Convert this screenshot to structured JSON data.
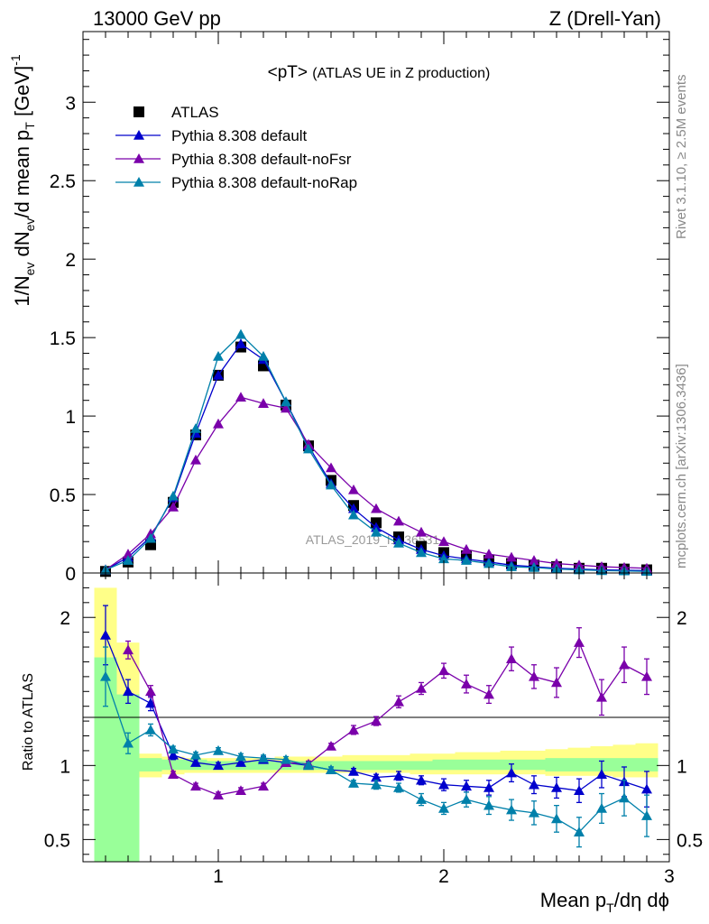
{
  "header": {
    "left": "13000 GeV pp",
    "right": "Z (Drell-Yan)"
  },
  "side_labels": {
    "rivet": "Rivet 3.1.10, ≥ 2.5M events",
    "mcplots": "mcplots.cern.ch [arXiv:1306.3436]"
  },
  "watermark": "ATLAS_2019_I1736531",
  "colors": {
    "atlas": "#000000",
    "default": "#0000cc",
    "noFsr": "#7a00aa",
    "noRap": "#0080aa",
    "band_yellow": "#ffff88",
    "band_green": "#99ff99"
  },
  "chart_data": [
    {
      "type": "scatter",
      "panel": "main",
      "title_main": "<pT>",
      "title_sub": "(ATLAS UE in Z production)",
      "ylabel": "1/N_ev dN_ev/d mean p_T [GeV]^-1",
      "xlim": [
        0.4,
        3.0
      ],
      "ylim": [
        0,
        3.45
      ],
      "yticks": [
        0,
        0.5,
        1,
        1.5,
        2,
        2.5,
        3
      ],
      "ytick_labels": [
        "0",
        "0.5",
        "1",
        "1.5",
        "2",
        "2.5",
        "3"
      ],
      "legend_position": "top-left",
      "x": [
        0.5,
        0.6,
        0.7,
        0.8,
        0.9,
        1.0,
        1.1,
        1.2,
        1.3,
        1.4,
        1.5,
        1.6,
        1.7,
        1.8,
        1.9,
        2.0,
        2.1,
        2.2,
        2.3,
        2.4,
        2.5,
        2.6,
        2.7,
        2.8,
        2.9
      ],
      "series": [
        {
          "name": "ATLAS",
          "marker": "square",
          "color_key": "atlas",
          "values": [
            0.01,
            0.07,
            0.18,
            0.45,
            0.88,
            1.26,
            1.44,
            1.32,
            1.07,
            0.81,
            0.59,
            0.43,
            0.32,
            0.23,
            0.17,
            0.13,
            0.11,
            0.08,
            0.06,
            0.05,
            0.04,
            0.03,
            0.03,
            0.025,
            0.02
          ]
        },
        {
          "name": "Pythia 8.308 default",
          "marker": "triangle",
          "color_key": "default",
          "values": [
            0.02,
            0.1,
            0.23,
            0.48,
            0.89,
            1.26,
            1.46,
            1.36,
            1.09,
            0.81,
            0.57,
            0.41,
            0.29,
            0.21,
            0.15,
            0.11,
            0.09,
            0.07,
            0.05,
            0.04,
            0.03,
            0.025,
            0.02,
            0.018,
            0.015
          ]
        },
        {
          "name": "Pythia 8.308 default-noFsr",
          "marker": "triangle",
          "color_key": "noFsr",
          "values": [
            0.02,
            0.12,
            0.25,
            0.42,
            0.72,
            0.95,
            1.12,
            1.08,
            1.05,
            0.82,
            0.67,
            0.53,
            0.41,
            0.33,
            0.26,
            0.2,
            0.15,
            0.12,
            0.1,
            0.08,
            0.06,
            0.05,
            0.04,
            0.035,
            0.03
          ]
        },
        {
          "name": "Pythia 8.308 default-noRap",
          "marker": "triangle",
          "color_key": "noRap",
          "values": [
            0.02,
            0.08,
            0.22,
            0.49,
            0.92,
            1.38,
            1.52,
            1.38,
            1.09,
            0.79,
            0.56,
            0.37,
            0.26,
            0.19,
            0.13,
            0.09,
            0.08,
            0.06,
            0.04,
            0.035,
            0.025,
            0.02,
            0.015,
            0.013,
            0.01
          ]
        }
      ]
    },
    {
      "type": "scatter",
      "panel": "ratio",
      "ylabel": "Ratio to ATLAS",
      "xlabel": "Mean p_T/dη dϕ",
      "xlim": [
        0.4,
        3.0
      ],
      "ylim": [
        0.35,
        2.3
      ],
      "yticks": [
        0.5,
        1,
        2
      ],
      "ytick_labels": [
        "0.5",
        "1",
        "2"
      ],
      "xticks": [
        1,
        2,
        3
      ],
      "xtick_labels": [
        "1",
        "2",
        "3"
      ],
      "x": [
        0.5,
        0.6,
        0.7,
        0.8,
        0.9,
        1.0,
        1.1,
        1.2,
        1.3,
        1.4,
        1.5,
        1.6,
        1.7,
        1.8,
        1.9,
        2.0,
        2.1,
        2.2,
        2.3,
        2.4,
        2.5,
        2.6,
        2.7,
        2.8,
        2.9
      ],
      "bin_edges": [
        0.45,
        0.55,
        0.65,
        0.75,
        0.85,
        0.95,
        1.05,
        1.15,
        1.25,
        1.35,
        1.45,
        1.55,
        1.65,
        1.75,
        1.85,
        1.95,
        2.05,
        2.15,
        2.25,
        2.35,
        2.45,
        2.55,
        2.65,
        2.75,
        2.85,
        2.95
      ],
      "band_yellow": {
        "low": [
          0.35,
          0.82,
          0.92,
          0.94,
          0.95,
          0.95,
          0.95,
          0.95,
          0.95,
          0.95,
          0.95,
          0.95,
          0.95,
          0.95,
          0.94,
          0.94,
          0.94,
          0.94,
          0.94,
          0.94,
          0.93,
          0.93,
          0.93,
          0.92,
          0.92
        ],
        "high": [
          2.2,
          1.83,
          1.08,
          1.06,
          1.05,
          1.05,
          1.05,
          1.05,
          1.06,
          1.06,
          1.06,
          1.07,
          1.07,
          1.07,
          1.08,
          1.08,
          1.09,
          1.09,
          1.1,
          1.1,
          1.11,
          1.12,
          1.13,
          1.14,
          1.15
        ]
      },
      "band_green": {
        "low": [
          0.35,
          0.35,
          0.96,
          0.97,
          0.97,
          0.97,
          0.97,
          0.97,
          0.97,
          0.97,
          0.97,
          0.97,
          0.97,
          0.97,
          0.97,
          0.97,
          0.97,
          0.97,
          0.97,
          0.97,
          0.96,
          0.96,
          0.96,
          0.96,
          0.96
        ],
        "high": [
          1.73,
          1.48,
          1.05,
          1.04,
          1.04,
          1.03,
          1.03,
          1.03,
          1.03,
          1.03,
          1.03,
          1.03,
          1.03,
          1.03,
          1.03,
          1.04,
          1.04,
          1.04,
          1.04,
          1.04,
          1.05,
          1.05,
          1.05,
          1.05,
          1.05
        ]
      },
      "series": [
        {
          "name": "Pythia 8.308 default",
          "color_key": "default",
          "values": [
            1.88,
            1.5,
            1.42,
            1.07,
            1.02,
            1.0,
            1.02,
            1.04,
            1.02,
            1.0,
            0.97,
            0.96,
            0.92,
            0.93,
            0.9,
            0.87,
            0.86,
            0.85,
            0.95,
            0.87,
            0.85,
            0.83,
            0.94,
            0.89,
            0.84
          ],
          "err": [
            0.2,
            0.08,
            0.05,
            0.03,
            0.02,
            0.02,
            0.02,
            0.02,
            0.02,
            0.02,
            0.02,
            0.02,
            0.02,
            0.03,
            0.03,
            0.04,
            0.04,
            0.05,
            0.06,
            0.06,
            0.07,
            0.08,
            0.09,
            0.1,
            0.12
          ]
        },
        {
          "name": "Pythia 8.308 default-noFsr",
          "color_key": "noFsr",
          "values": [
            null,
            1.78,
            1.5,
            0.94,
            0.86,
            0.8,
            0.83,
            0.86,
            1.02,
            1.01,
            1.13,
            1.24,
            1.3,
            1.43,
            1.52,
            1.64,
            1.55,
            1.48,
            1.72,
            1.6,
            1.56,
            1.83,
            1.46,
            1.68,
            1.6
          ],
          "err": [
            null,
            0.06,
            0.04,
            0.02,
            0.02,
            0.02,
            0.02,
            0.02,
            0.02,
            0.02,
            0.02,
            0.03,
            0.03,
            0.04,
            0.04,
            0.05,
            0.06,
            0.06,
            0.08,
            0.08,
            0.1,
            0.1,
            0.12,
            0.12,
            0.12
          ]
        },
        {
          "name": "Pythia 8.308 default-noRap",
          "color_key": "noRap",
          "values": [
            1.6,
            1.15,
            1.24,
            1.11,
            1.07,
            1.1,
            1.06,
            1.05,
            1.04,
            1.0,
            0.97,
            0.88,
            0.87,
            0.85,
            0.77,
            0.71,
            0.77,
            0.73,
            0.7,
            0.68,
            0.64,
            0.55,
            0.71,
            0.78,
            0.66
          ],
          "err": [
            0.2,
            0.07,
            0.04,
            0.02,
            0.02,
            0.02,
            0.02,
            0.02,
            0.02,
            0.02,
            0.02,
            0.02,
            0.03,
            0.03,
            0.04,
            0.04,
            0.05,
            0.06,
            0.07,
            0.08,
            0.09,
            0.1,
            0.1,
            0.12,
            0.14
          ]
        }
      ]
    }
  ]
}
